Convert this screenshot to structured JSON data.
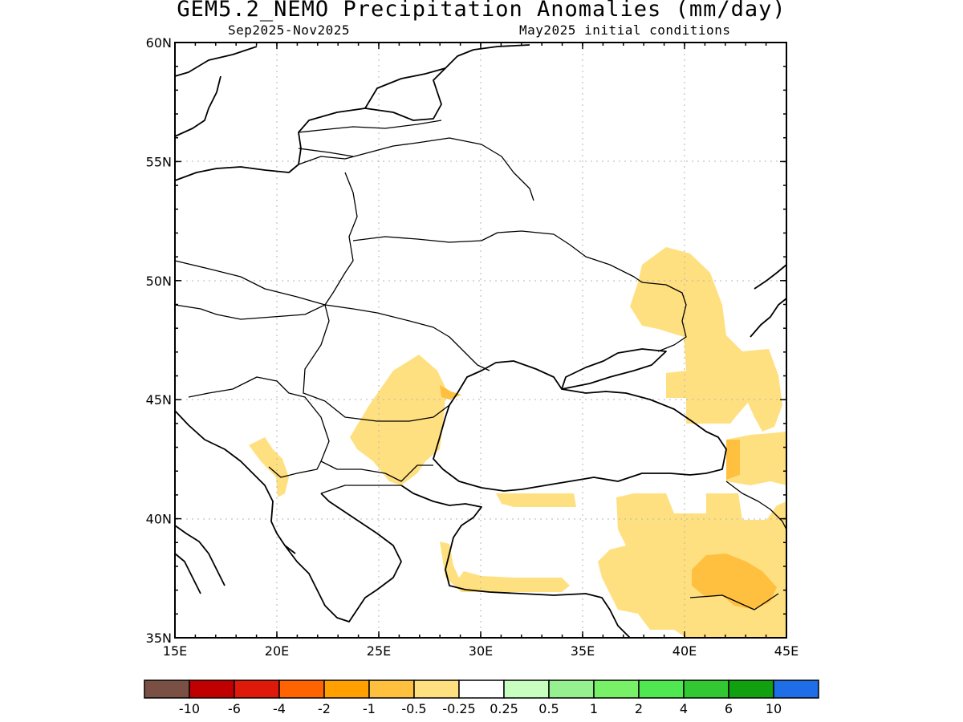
{
  "title": "GEM5.2_NEMO Precipitation Anomalies (mm/day)",
  "period": "Sep2025-Nov2025",
  "init": "May2025 initial conditions",
  "map": {
    "lon_range": [
      15,
      45
    ],
    "lat_range": [
      35,
      60
    ],
    "lon_ticks": [
      {
        "v": 15,
        "label": "15E"
      },
      {
        "v": 20,
        "label": "20E"
      },
      {
        "v": 25,
        "label": "25E"
      },
      {
        "v": 30,
        "label": "30E"
      },
      {
        "v": 35,
        "label": "35E"
      },
      {
        "v": 40,
        "label": "40E"
      },
      {
        "v": 45,
        "label": "45E"
      }
    ],
    "lat_ticks": [
      {
        "v": 35,
        "label": "35N"
      },
      {
        "v": 40,
        "label": "40N"
      },
      {
        "v": 45,
        "label": "45N"
      },
      {
        "v": 50,
        "label": "50N"
      },
      {
        "v": 55,
        "label": "55N"
      },
      {
        "v": 60,
        "label": "60N"
      }
    ]
  },
  "colorbar": {
    "colors": [
      "#7b5044",
      "#c00000",
      "#e01a0a",
      "#ff6400",
      "#ffa000",
      "#ffc040",
      "#ffe080",
      "#ffffff",
      "#c8ffc0",
      "#96f090",
      "#78f068",
      "#50e850",
      "#32c832",
      "#10a010",
      "#1e6ee8"
    ],
    "labels": [
      "-10",
      "-6",
      "-4",
      "-2",
      "-1",
      "-0.5",
      "-0.25",
      "0.25",
      "0.5",
      "1",
      "2",
      "4",
      "6",
      "10"
    ]
  }
}
